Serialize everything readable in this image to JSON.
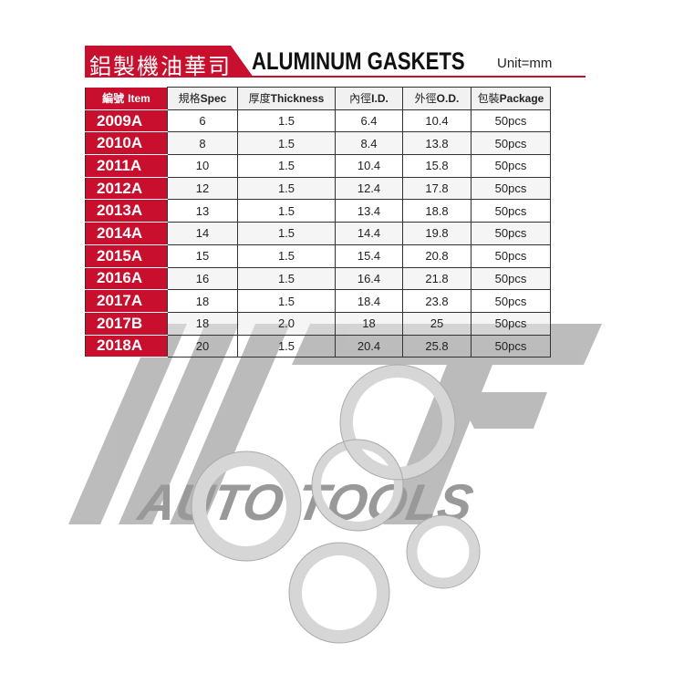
{
  "title": {
    "chinese": "鋁製機油華司",
    "english": "ALUMINUM GASKETS",
    "unit": "Unit=mm"
  },
  "table": {
    "headers": [
      {
        "cn": "編號",
        "en": "Item"
      },
      {
        "cn": "規格",
        "en": "Spec"
      },
      {
        "cn": "厚度",
        "en": "Thickness"
      },
      {
        "cn": "內徑",
        "en": "I.D."
      },
      {
        "cn": "外徑",
        "en": "O.D."
      },
      {
        "cn": "包裝",
        "en": "Package"
      }
    ],
    "rows": [
      [
        "2009A",
        "6",
        "1.5",
        "6.4",
        "10.4",
        "50pcs"
      ],
      [
        "2010A",
        "8",
        "1.5",
        "8.4",
        "13.8",
        "50pcs"
      ],
      [
        "2011A",
        "10",
        "1.5",
        "10.4",
        "15.8",
        "50pcs"
      ],
      [
        "2012A",
        "12",
        "1.5",
        "12.4",
        "17.8",
        "50pcs"
      ],
      [
        "2013A",
        "13",
        "1.5",
        "13.4",
        "18.8",
        "50pcs"
      ],
      [
        "2014A",
        "14",
        "1.5",
        "14.4",
        "19.8",
        "50pcs"
      ],
      [
        "2015A",
        "15",
        "1.5",
        "15.4",
        "20.8",
        "50pcs"
      ],
      [
        "2016A",
        "16",
        "1.5",
        "16.4",
        "21.8",
        "50pcs"
      ],
      [
        "2017A",
        "18",
        "1.5",
        "18.4",
        "23.8",
        "50pcs"
      ],
      [
        "2017B",
        "18",
        "2.0",
        "18",
        "25",
        "50pcs"
      ],
      [
        "2018A",
        "20",
        "1.5",
        "20.4",
        "25.8",
        "50pcs"
      ]
    ]
  },
  "watermark": {
    "logo": "JTC",
    "tagline": "AUTO TOOLS"
  },
  "colors": {
    "accent": "#c8102e",
    "watermark": "#a0a0a0"
  }
}
